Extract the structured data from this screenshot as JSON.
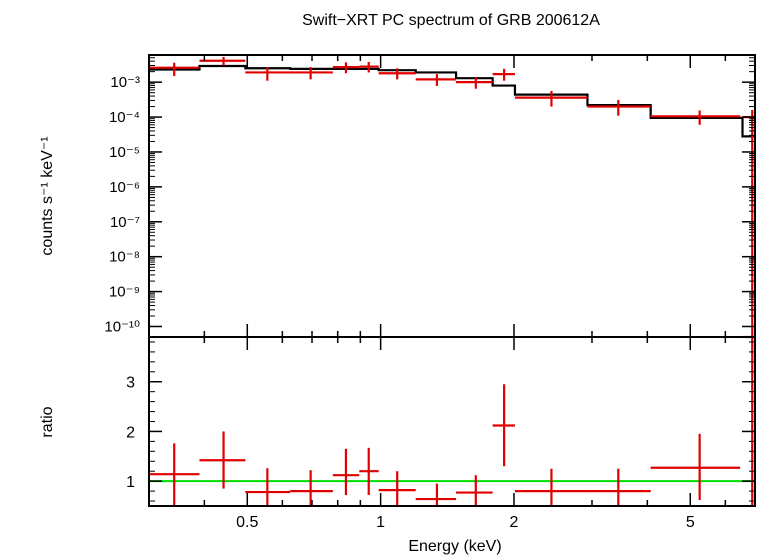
{
  "chart_data": [
    {
      "type": "line",
      "title": "Swift−XRT PC spectrum of GRB 200612A",
      "ylabel": "counts s⁻¹ keV⁻¹",
      "yscale": "log",
      "ylim": [
        5e-11,
        0.006
      ],
      "xscale": "log",
      "xlim": [
        0.3,
        7.0
      ],
      "y_ticks": [
        {
          "v": 0.001,
          "label": "10⁻³"
        },
        {
          "v": 0.0001,
          "label": "10⁻⁴"
        },
        {
          "v": 1e-05,
          "label": "10⁻⁵"
        },
        {
          "v": 1e-06,
          "label": "10⁻⁶"
        },
        {
          "v": 1e-07,
          "label": "10⁻⁷"
        },
        {
          "v": 1e-08,
          "label": "10⁻⁸"
        },
        {
          "v": 1e-09,
          "label": "10⁻⁹"
        },
        {
          "v": 1e-10,
          "label": "10⁻¹⁰"
        }
      ],
      "series": [
        {
          "name": "",
          "color": "#e00000",
          "points": [
            {
              "x": 0.342,
              "xlo": 0.3,
              "xhi": 0.39,
              "y": 0.0026,
              "ylo": 0.0015,
              "yhi": 0.0036
            },
            {
              "x": 0.442,
              "xlo": 0.39,
              "xhi": 0.495,
              "y": 0.0041,
              "ylo": 0.003,
              "yhi": 0.0053
            },
            {
              "x": 0.555,
              "xlo": 0.495,
              "xhi": 0.625,
              "y": 0.0019,
              "ylo": 0.0011,
              "yhi": 0.0027
            },
            {
              "x": 0.695,
              "xlo": 0.625,
              "xhi": 0.78,
              "y": 0.0019,
              "ylo": 0.0012,
              "yhi": 0.0027
            },
            {
              "x": 0.835,
              "xlo": 0.78,
              "xhi": 0.895,
              "y": 0.0027,
              "ylo": 0.0018,
              "yhi": 0.0037
            },
            {
              "x": 0.94,
              "xlo": 0.895,
              "xhi": 0.99,
              "y": 0.0028,
              "ylo": 0.0019,
              "yhi": 0.0038
            },
            {
              "x": 1.09,
              "xlo": 0.99,
              "xhi": 1.2,
              "y": 0.0018,
              "ylo": 0.0012,
              "yhi": 0.0025
            },
            {
              "x": 1.34,
              "xlo": 1.2,
              "xhi": 1.48,
              "y": 0.0012,
              "ylo": 0.00078,
              "yhi": 0.0017
            },
            {
              "x": 1.64,
              "xlo": 1.48,
              "xhi": 1.79,
              "y": 0.001,
              "ylo": 0.00065,
              "yhi": 0.0014
            },
            {
              "x": 1.9,
              "xlo": 1.79,
              "xhi": 2.01,
              "y": 0.0017,
              "ylo": 0.0011,
              "yhi": 0.0024
            },
            {
              "x": 2.43,
              "xlo": 2.01,
              "xhi": 2.93,
              "y": 0.00036,
              "ylo": 0.0002,
              "yhi": 0.00056
            },
            {
              "x": 3.44,
              "xlo": 2.93,
              "xhi": 4.07,
              "y": 0.0002,
              "ylo": 0.00011,
              "yhi": 0.00031
            },
            {
              "x": 5.25,
              "xlo": 4.07,
              "xhi": 6.48,
              "y": 0.000105,
              "ylo": 6e-05,
              "yhi": 0.000155
            },
            {
              "x": 6.9,
              "xlo": 6.56,
              "xhi": 7.0,
              "y": 0.0001,
              "ylo": 5e-11,
              "yhi": 0.00016
            }
          ]
        },
        {
          "name": "",
          "color": "#000000",
          "style": "step",
          "steps": [
            {
              "xlo": 0.3,
              "xhi": 0.39,
              "y": 0.0023
            },
            {
              "xlo": 0.39,
              "xhi": 0.495,
              "y": 0.0029
            },
            {
              "xlo": 0.495,
              "xhi": 0.625,
              "y": 0.0025
            },
            {
              "xlo": 0.625,
              "xhi": 0.78,
              "y": 0.0024
            },
            {
              "xlo": 0.78,
              "xhi": 0.895,
              "y": 0.0024
            },
            {
              "xlo": 0.895,
              "xhi": 0.99,
              "y": 0.0024
            },
            {
              "xlo": 0.99,
              "xhi": 1.2,
              "y": 0.0022
            },
            {
              "xlo": 1.2,
              "xhi": 1.48,
              "y": 0.0019
            },
            {
              "xlo": 1.48,
              "xhi": 1.79,
              "y": 0.0013
            },
            {
              "xlo": 1.79,
              "xhi": 2.01,
              "y": 0.0008
            },
            {
              "xlo": 2.01,
              "xhi": 2.93,
              "y": 0.00044
            },
            {
              "xlo": 2.93,
              "xhi": 4.07,
              "y": 0.00022
            },
            {
              "xlo": 4.07,
              "xhi": 6.56,
              "y": 9.5e-05
            },
            {
              "xlo": 6.56,
              "xhi": 7.0,
              "y": 2.8e-05
            }
          ]
        }
      ]
    },
    {
      "type": "scatter",
      "xlabel": "Energy (keV)",
      "ylabel": "ratio",
      "xscale": "log",
      "xlim": [
        0.3,
        7.0
      ],
      "ylim": [
        0.5,
        3.9
      ],
      "x_ticks": [
        {
          "v": 0.5,
          "label": "0.5"
        },
        {
          "v": 1,
          "label": "1"
        },
        {
          "v": 2,
          "label": "2"
        },
        {
          "v": 5,
          "label": "5"
        }
      ],
      "y_ticks": [
        {
          "v": 1,
          "label": "1"
        },
        {
          "v": 2,
          "label": "2"
        },
        {
          "v": 3,
          "label": "3"
        }
      ],
      "reference_line": {
        "y": 1.0,
        "color": "#00dd00"
      },
      "series": [
        {
          "name": "",
          "color": "#e00000",
          "points": [
            {
              "x": 0.342,
              "xlo": 0.3,
              "xhi": 0.39,
              "y": 1.14,
              "ylo": 0.5,
              "yhi": 1.76
            },
            {
              "x": 0.442,
              "xlo": 0.39,
              "xhi": 0.495,
              "y": 1.42,
              "ylo": 0.85,
              "yhi": 2.0
            },
            {
              "x": 0.555,
              "xlo": 0.495,
              "xhi": 0.625,
              "y": 0.78,
              "ylo": 0.5,
              "yhi": 1.26
            },
            {
              "x": 0.695,
              "xlo": 0.625,
              "xhi": 0.78,
              "y": 0.8,
              "ylo": 0.5,
              "yhi": 1.22
            },
            {
              "x": 0.835,
              "xlo": 0.78,
              "xhi": 0.895,
              "y": 1.12,
              "ylo": 0.72,
              "yhi": 1.65
            },
            {
              "x": 0.94,
              "xlo": 0.895,
              "xhi": 0.99,
              "y": 1.2,
              "ylo": 0.72,
              "yhi": 1.67
            },
            {
              "x": 1.09,
              "xlo": 0.99,
              "xhi": 1.2,
              "y": 0.82,
              "ylo": 0.5,
              "yhi": 1.2
            },
            {
              "x": 1.34,
              "xlo": 1.2,
              "xhi": 1.48,
              "y": 0.64,
              "ylo": 0.5,
              "yhi": 0.95
            },
            {
              "x": 1.64,
              "xlo": 1.48,
              "xhi": 1.79,
              "y": 0.77,
              "ylo": 0.5,
              "yhi": 1.12
            },
            {
              "x": 1.9,
              "xlo": 1.79,
              "xhi": 2.01,
              "y": 2.12,
              "ylo": 1.3,
              "yhi": 2.95
            },
            {
              "x": 2.43,
              "xlo": 2.01,
              "xhi": 2.93,
              "y": 0.8,
              "ylo": 0.5,
              "yhi": 1.25
            },
            {
              "x": 3.44,
              "xlo": 2.93,
              "xhi": 4.07,
              "y": 0.8,
              "ylo": 0.5,
              "yhi": 1.25
            },
            {
              "x": 5.25,
              "xlo": 4.07,
              "xhi": 6.48,
              "y": 1.27,
              "ylo": 0.62,
              "yhi": 1.95
            },
            {
              "x": 6.9,
              "xlo": 6.56,
              "xhi": 7.0,
              "y": 3.9,
              "ylo": 0.5,
              "yhi": 3.9
            }
          ]
        }
      ]
    }
  ]
}
